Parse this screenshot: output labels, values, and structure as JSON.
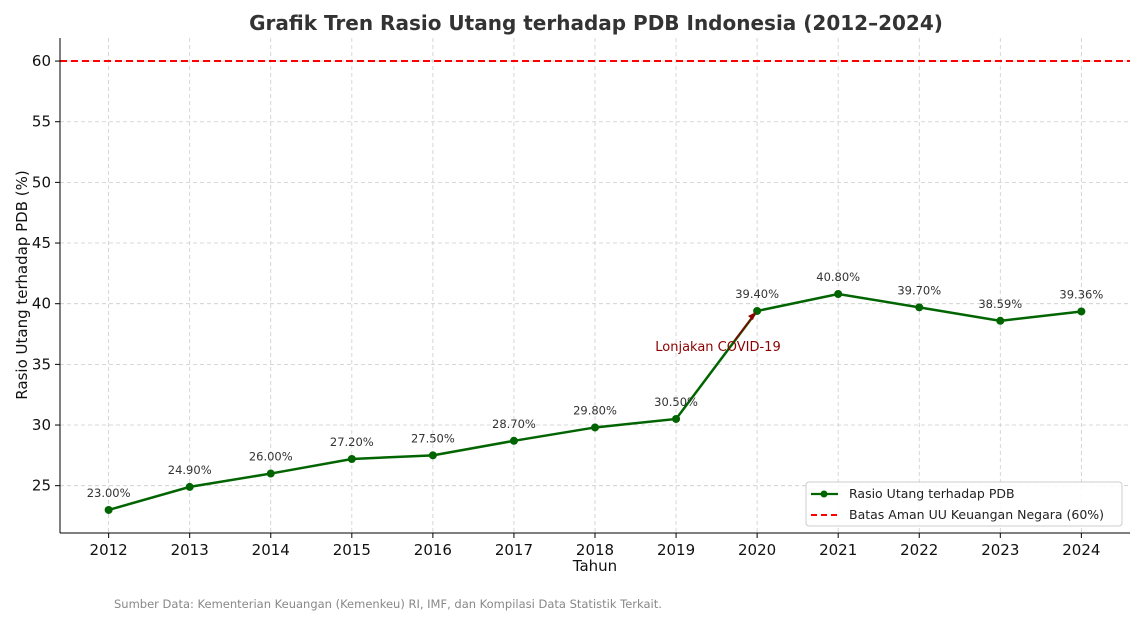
{
  "chart_data": {
    "type": "line",
    "title": "Grafik Tren Rasio Utang terhadap PDB Indonesia (2012–2024)",
    "xlabel": "Tahun",
    "ylabel": "Rasio Utang terhadap PDB (%)",
    "x": [
      2012,
      2013,
      2014,
      2015,
      2016,
      2017,
      2018,
      2019,
      2020,
      2021,
      2022,
      2023,
      2024
    ],
    "series": [
      {
        "name": "Rasio Utang terhadap PDB",
        "color": "#006400",
        "values": [
          23.0,
          24.9,
          26.0,
          27.2,
          27.5,
          28.7,
          29.8,
          30.5,
          39.4,
          40.8,
          39.7,
          38.59,
          39.36
        ],
        "labels": [
          "23.00%",
          "24.90%",
          "26.00%",
          "27.20%",
          "27.50%",
          "28.70%",
          "29.80%",
          "30.50%",
          "39.40%",
          "40.80%",
          "39.70%",
          "38.59%",
          "39.36%"
        ]
      }
    ],
    "reference_line": {
      "name": "Batas Aman UU Keuangan Negara (60%)",
      "value": 60,
      "color": "#ff0000",
      "style": "dashed"
    },
    "annotation": {
      "text": "Lonjakan COVID-19",
      "x": 2020,
      "y": 39.4,
      "color": "#8b0000"
    },
    "xlim": [
      2011.4,
      2024.6
    ],
    "ylim": [
      21.1,
      61.9
    ],
    "yticks": [
      25,
      30,
      35,
      40,
      45,
      50,
      55,
      60
    ],
    "xticks": [
      2012,
      2013,
      2014,
      2015,
      2016,
      2017,
      2018,
      2019,
      2020,
      2021,
      2022,
      2023,
      2024
    ],
    "grid": true,
    "legend_position": "bottom-right",
    "source": "Sumber Data: Kementerian Keuangan (Kemenkeu) RI, IMF, dan Kompilasi Data Statistik Terkait."
  }
}
